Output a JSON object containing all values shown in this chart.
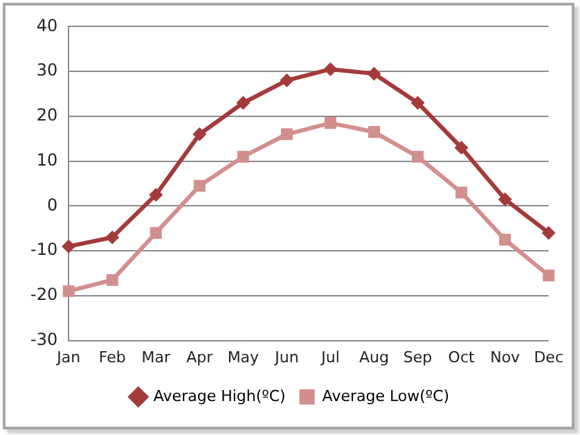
{
  "chart_data": {
    "type": "line",
    "categories": [
      "Jan",
      "Feb",
      "Mar",
      "Apr",
      "May",
      "Jun",
      "Jul",
      "Aug",
      "Sep",
      "Oct",
      "Nov",
      "Dec"
    ],
    "series": [
      {
        "name": "Average High(ºC)",
        "color": "#a33b3b",
        "marker": "diamond",
        "values": [
          -9,
          -7,
          2.5,
          16,
          23,
          28,
          30.5,
          29.5,
          23,
          13,
          1.5,
          -6
        ]
      },
      {
        "name": "Average Low(ºC)",
        "color": "#d38e8e",
        "marker": "square",
        "values": [
          -19,
          -16.5,
          -6,
          4.5,
          11,
          16,
          18.5,
          16.5,
          11,
          3,
          -7.5,
          -15.5
        ]
      }
    ],
    "ylim": [
      -30,
      40
    ],
    "yticks": [
      -30,
      -20,
      -10,
      0,
      10,
      20,
      30,
      40
    ],
    "grid": "y",
    "legend": "bottom"
  }
}
